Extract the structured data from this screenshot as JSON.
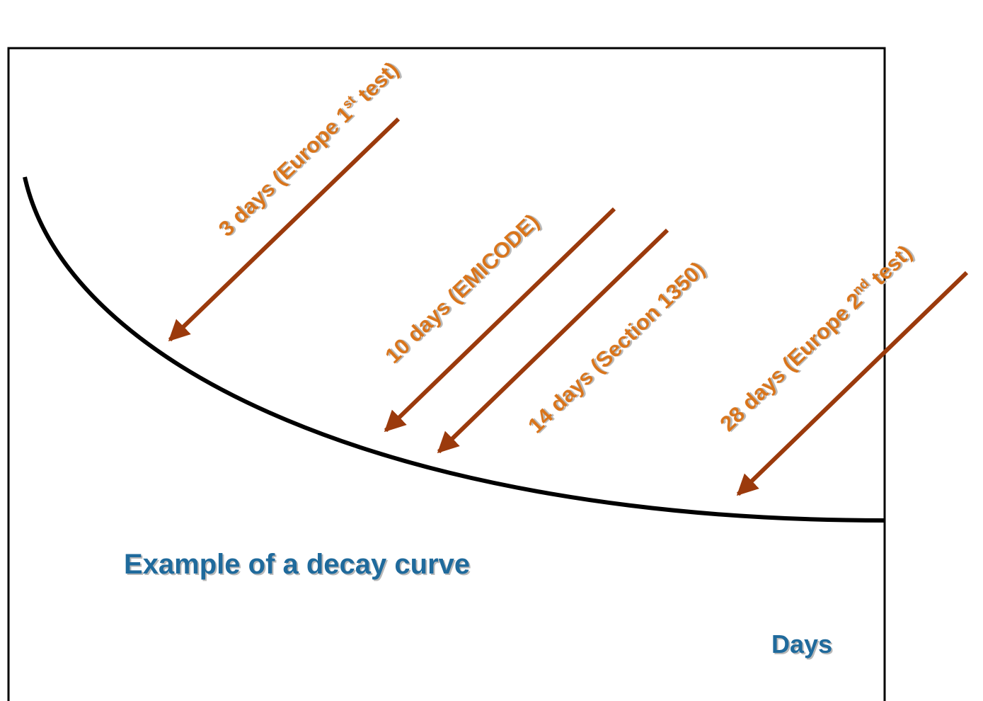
{
  "title": "Example of a decay curve",
  "axis_label": "Days",
  "annotations": [
    {
      "parts": [
        "3 days (Europe 1",
        "st",
        " test)"
      ]
    },
    {
      "parts": [
        "10 days (EMICODE)"
      ]
    },
    {
      "parts": [
        "14 days (Section 1350)"
      ]
    },
    {
      "parts": [
        "28 days (Europe 2",
        "nd",
        " test)"
      ]
    }
  ]
}
